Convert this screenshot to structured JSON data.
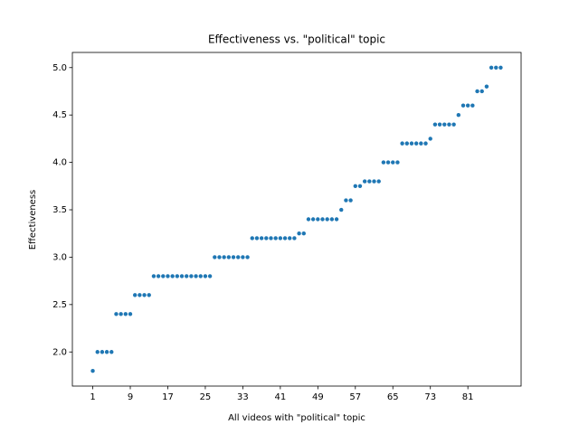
{
  "chart_data": {
    "type": "scatter",
    "title": "Effectiveness vs. \"political\" topic",
    "xlabel": "All videos with \"political\" topic",
    "ylabel": "Effectiveness",
    "x": [
      1,
      2,
      3,
      4,
      5,
      6,
      7,
      8,
      9,
      10,
      11,
      12,
      13,
      14,
      15,
      16,
      17,
      18,
      19,
      20,
      21,
      22,
      23,
      24,
      25,
      26,
      27,
      28,
      29,
      30,
      31,
      32,
      33,
      34,
      35,
      36,
      37,
      38,
      39,
      40,
      41,
      42,
      43,
      44,
      45,
      46,
      47,
      48,
      49,
      50,
      51,
      52,
      53,
      54,
      55,
      56,
      57,
      58,
      59,
      60,
      61,
      62,
      63,
      64,
      65,
      66,
      67,
      68,
      69,
      70,
      71,
      72,
      73,
      74,
      75,
      76,
      77,
      78,
      79,
      80,
      81,
      82,
      83,
      84,
      85,
      86,
      87,
      88
    ],
    "values": [
      1.8,
      2.0,
      2.0,
      2.0,
      2.0,
      2.4,
      2.4,
      2.4,
      2.4,
      2.6,
      2.6,
      2.6,
      2.6,
      2.8,
      2.8,
      2.8,
      2.8,
      2.8,
      2.8,
      2.8,
      2.8,
      2.8,
      2.8,
      2.8,
      2.8,
      2.8,
      3.0,
      3.0,
      3.0,
      3.0,
      3.0,
      3.0,
      3.0,
      3.0,
      3.2,
      3.2,
      3.2,
      3.2,
      3.2,
      3.2,
      3.2,
      3.2,
      3.2,
      3.2,
      3.25,
      3.25,
      3.4,
      3.4,
      3.4,
      3.4,
      3.4,
      3.4,
      3.4,
      3.5,
      3.6,
      3.6,
      3.75,
      3.75,
      3.8,
      3.8,
      3.8,
      3.8,
      4.0,
      4.0,
      4.0,
      4.0,
      4.2,
      4.2,
      4.2,
      4.2,
      4.2,
      4.2,
      4.25,
      4.4,
      4.4,
      4.4,
      4.4,
      4.4,
      4.5,
      4.6,
      4.6,
      4.6,
      4.75,
      4.75,
      4.8,
      5.0,
      5.0,
      5.0
    ],
    "color": "#1f77b4",
    "xlim": [
      -3.35,
      92.35
    ],
    "xticks": [
      1,
      9,
      17,
      25,
      33,
      41,
      49,
      57,
      65,
      73,
      81
    ],
    "ylim": [
      1.64,
      5.16
    ],
    "yticks": [
      {
        "value": 2,
        "label": "2.0"
      },
      {
        "value": 2.5,
        "label": "2.5"
      },
      {
        "value": 3,
        "label": "3.0"
      },
      {
        "value": 3.5,
        "label": "3.5"
      },
      {
        "value": 4,
        "label": "4.0"
      },
      {
        "value": 4.5,
        "label": "4.5"
      },
      {
        "value": 5,
        "label": "5.0"
      }
    ],
    "grid": false
  }
}
